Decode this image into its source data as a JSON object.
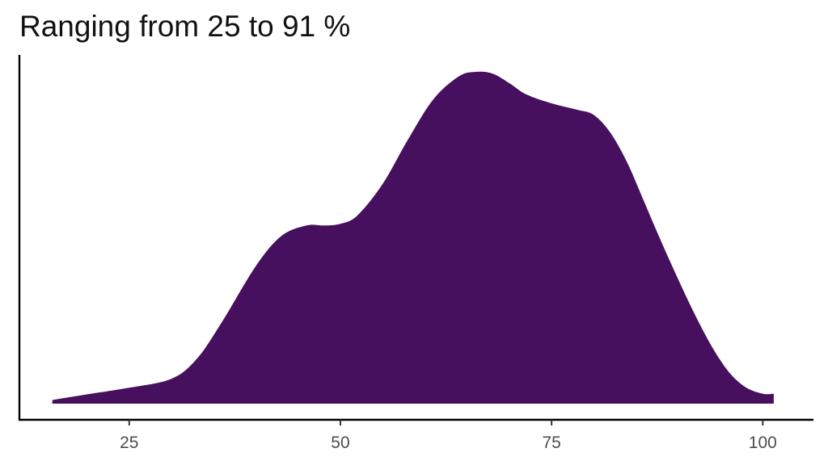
{
  "chart_data": {
    "type": "area",
    "subtype": "density",
    "title": "Ranging from 25 to 91 %",
    "xlabel": "",
    "ylabel": "",
    "xlim": [
      12,
      106
    ],
    "ylim": [
      0,
      1
    ],
    "x_ticks": [
      25,
      50,
      75,
      100
    ],
    "x_tick_labels": [
      "25",
      "50",
      "75",
      "100"
    ],
    "y_ticks_shown": false,
    "grid": false,
    "legend": "none",
    "fill_color": "#46105E",
    "series": [
      {
        "x": [
          15.9,
          20,
          25,
          30,
          33,
          36,
          40,
          43,
          46,
          48,
          50,
          52,
          55,
          58,
          61,
          64,
          66,
          68,
          70,
          72,
          75,
          78,
          80,
          82,
          84,
          86,
          88,
          90,
          92,
          94,
          96,
          98,
          100,
          101.3
        ],
        "y": [
          0.011,
          0.028,
          0.048,
          0.075,
          0.135,
          0.247,
          0.415,
          0.505,
          0.537,
          0.537,
          0.542,
          0.567,
          0.662,
          0.796,
          0.917,
          0.986,
          1.0,
          0.995,
          0.966,
          0.932,
          0.905,
          0.886,
          0.87,
          0.815,
          0.724,
          0.606,
          0.487,
          0.374,
          0.267,
          0.171,
          0.095,
          0.049,
          0.03,
          0.03
        ]
      }
    ]
  }
}
